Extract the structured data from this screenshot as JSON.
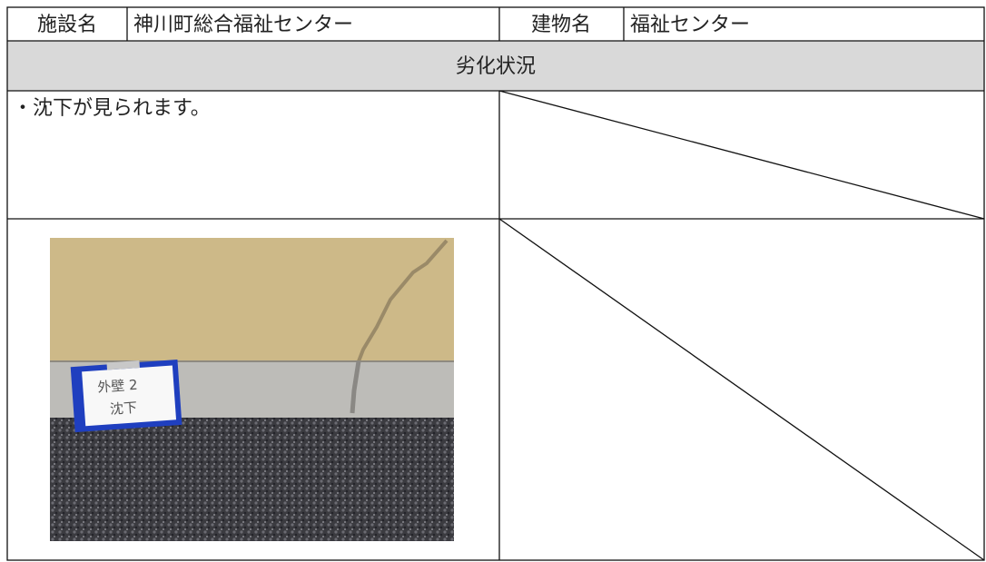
{
  "header": {
    "facility_label": "施設名",
    "facility_name": "神川町総合福祉センター",
    "building_label": "建物名",
    "building_name": "福祉センター"
  },
  "section": {
    "title": "劣化状況",
    "description": "・沈下が見られます。"
  },
  "photo": {
    "sign_line1": "外壁 2",
    "sign_line2": "沈下"
  }
}
